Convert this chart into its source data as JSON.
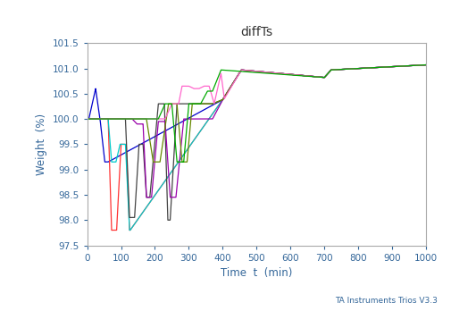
{
  "title": "diffTs",
  "xlabel": "Time  t  (min)",
  "ylabel": "Weight  (%)",
  "xlim": [
    0,
    1000
  ],
  "ylim": [
    97.5,
    101.5
  ],
  "yticks": [
    97.5,
    98.0,
    98.5,
    99.0,
    99.5,
    100.0,
    100.5,
    101.0,
    101.5
  ],
  "xticks": [
    0,
    100,
    200,
    300,
    400,
    500,
    600,
    700,
    800,
    900,
    1000
  ],
  "watermark": "TA Instruments Trios V3.3",
  "title_fontsize": 10,
  "axis_label_fontsize": 8.5,
  "tick_fontsize": 7.5,
  "axis_label_color": "#336699",
  "tick_color": "#336699",
  "spine_color": "#aaaaaa",
  "title_color": "#333333",
  "watermark_color": "#336699",
  "watermark_fontsize": 6.5,
  "linewidth": 0.9,
  "traces": [
    {
      "name": "blue",
      "color": "#0000cc",
      "keypoints": [
        [
          0,
          100.0
        ],
        [
          5,
          100.0
        ],
        [
          25,
          100.6
        ],
        [
          38,
          100.0
        ],
        [
          52,
          99.15
        ],
        [
          60,
          99.15
        ],
        [
          62,
          99.15
        ],
        [
          400,
          100.38
        ],
        [
          455,
          100.97
        ],
        [
          700,
          100.82
        ],
        [
          720,
          100.97
        ],
        [
          1000,
          101.07
        ]
      ]
    },
    {
      "name": "red",
      "color": "#ff3333",
      "keypoints": [
        [
          0,
          100.0
        ],
        [
          62,
          100.0
        ],
        [
          72,
          97.8
        ],
        [
          87,
          97.8
        ],
        [
          100,
          99.5
        ],
        [
          115,
          99.5
        ],
        [
          125,
          97.8
        ],
        [
          127,
          97.8
        ],
        [
          400,
          100.38
        ],
        [
          455,
          100.97
        ],
        [
          700,
          100.82
        ],
        [
          720,
          100.97
        ],
        [
          1000,
          101.07
        ]
      ]
    },
    {
      "name": "cyan",
      "color": "#00cccc",
      "keypoints": [
        [
          0,
          100.0
        ],
        [
          62,
          100.0
        ],
        [
          72,
          99.15
        ],
        [
          85,
          99.15
        ],
        [
          97,
          99.5
        ],
        [
          113,
          99.5
        ],
        [
          125,
          97.8
        ],
        [
          127,
          97.8
        ],
        [
          400,
          100.38
        ],
        [
          455,
          100.97
        ],
        [
          700,
          100.82
        ],
        [
          720,
          100.97
        ],
        [
          1000,
          101.07
        ]
      ]
    },
    {
      "name": "darkgray",
      "color": "#444444",
      "keypoints": [
        [
          0,
          100.0
        ],
        [
          113,
          100.0
        ],
        [
          125,
          98.05
        ],
        [
          140,
          98.05
        ],
        [
          153,
          99.5
        ],
        [
          165,
          99.5
        ],
        [
          175,
          98.45
        ],
        [
          185,
          98.45
        ],
        [
          210,
          100.3
        ],
        [
          228,
          100.3
        ],
        [
          238,
          98.0
        ],
        [
          245,
          98.0
        ],
        [
          265,
          100.3
        ],
        [
          370,
          100.3
        ],
        [
          400,
          100.38
        ],
        [
          455,
          100.97
        ],
        [
          700,
          100.82
        ],
        [
          720,
          100.97
        ],
        [
          1000,
          101.07
        ]
      ]
    },
    {
      "name": "purple",
      "color": "#9900aa",
      "keypoints": [
        [
          0,
          100.0
        ],
        [
          133,
          100.0
        ],
        [
          147,
          99.9
        ],
        [
          165,
          99.9
        ],
        [
          175,
          98.45
        ],
        [
          190,
          98.45
        ],
        [
          210,
          99.95
        ],
        [
          230,
          99.95
        ],
        [
          245,
          98.45
        ],
        [
          262,
          98.45
        ],
        [
          285,
          100.0
        ],
        [
          370,
          100.0
        ],
        [
          400,
          100.38
        ],
        [
          455,
          100.97
        ],
        [
          700,
          100.82
        ],
        [
          720,
          100.97
        ],
        [
          1000,
          101.07
        ]
      ]
    },
    {
      "name": "olive",
      "color": "#668800",
      "keypoints": [
        [
          0,
          100.0
        ],
        [
          175,
          100.0
        ],
        [
          195,
          99.15
        ],
        [
          215,
          99.15
        ],
        [
          240,
          100.3
        ],
        [
          265,
          100.3
        ],
        [
          280,
          99.15
        ],
        [
          295,
          99.15
        ],
        [
          310,
          100.3
        ],
        [
          370,
          100.3
        ],
        [
          400,
          100.38
        ],
        [
          455,
          100.97
        ],
        [
          700,
          100.82
        ],
        [
          720,
          100.97
        ],
        [
          1000,
          101.07
        ]
      ]
    },
    {
      "name": "pink",
      "color": "#ff66cc",
      "keypoints": [
        [
          0,
          100.0
        ],
        [
          230,
          100.0
        ],
        [
          250,
          100.3
        ],
        [
          270,
          100.3
        ],
        [
          280,
          100.65
        ],
        [
          300,
          100.65
        ],
        [
          315,
          100.6
        ],
        [
          330,
          100.6
        ],
        [
          345,
          100.65
        ],
        [
          360,
          100.65
        ],
        [
          375,
          100.3
        ],
        [
          395,
          100.9
        ],
        [
          405,
          100.4
        ],
        [
          455,
          100.97
        ],
        [
          700,
          100.82
        ],
        [
          720,
          100.97
        ],
        [
          1000,
          101.07
        ]
      ]
    },
    {
      "name": "green",
      "color": "#00aa00",
      "keypoints": [
        [
          0,
          100.0
        ],
        [
          210,
          100.0
        ],
        [
          230,
          100.3
        ],
        [
          250,
          100.3
        ],
        [
          265,
          99.15
        ],
        [
          285,
          99.15
        ],
        [
          300,
          100.3
        ],
        [
          335,
          100.3
        ],
        [
          355,
          100.55
        ],
        [
          370,
          100.55
        ],
        [
          395,
          100.97
        ],
        [
          700,
          100.82
        ],
        [
          720,
          100.97
        ],
        [
          1000,
          101.07
        ]
      ]
    }
  ],
  "tail_keypoints": [
    [
      400,
      100.38
    ],
    [
      455,
      100.97
    ],
    [
      700,
      100.82
    ],
    [
      720,
      100.97
    ],
    [
      1000,
      101.07
    ]
  ]
}
